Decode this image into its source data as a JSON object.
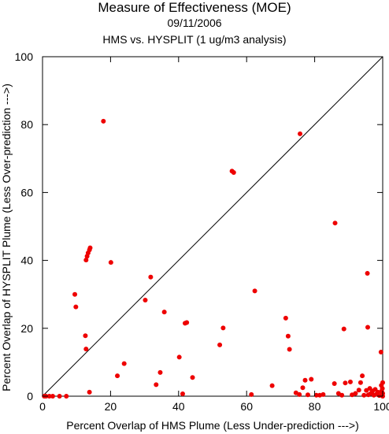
{
  "header": {
    "title": "Measure of Effectiveness (MOE)",
    "date": "09/11/2006",
    "subtitle": "HMS vs. HYSPLIT  (1 ug/m3 analysis)"
  },
  "chart_data": {
    "type": "scatter",
    "xlabel": "Percent Overlap of HMS Plume (Less Under-prediction --->)",
    "ylabel": "Percent Overlap of HYSPLIT Plume (Less Over-prediction --->)",
    "xlim": [
      0,
      100
    ],
    "ylim": [
      0,
      100
    ],
    "xticks": [
      0,
      20,
      40,
      60,
      80,
      100
    ],
    "yticks": [
      0,
      20,
      40,
      60,
      80,
      100
    ],
    "x_tick_labels": [
      "0",
      "20",
      "40",
      "60",
      "80",
      "100"
    ],
    "y_tick_labels": [
      "0",
      "20",
      "40",
      "60",
      "80",
      "100"
    ],
    "grid": false,
    "reference_line": "y = x diagonal",
    "marker_color": "#ee0000",
    "series": [
      {
        "points": [
          [
            0.5,
            0
          ],
          [
            1,
            0
          ],
          [
            2,
            0
          ],
          [
            3,
            0
          ],
          [
            5,
            0
          ],
          [
            7,
            0
          ],
          [
            9.5,
            30
          ],
          [
            9.8,
            26.3
          ],
          [
            12.6,
            17.8
          ],
          [
            12.8,
            13.9
          ],
          [
            12.8,
            40.1
          ],
          [
            13.1,
            41.2
          ],
          [
            13.4,
            42.2
          ],
          [
            13.8,
            43.1
          ],
          [
            14,
            43.7
          ],
          [
            13.8,
            1.2
          ],
          [
            17.9,
            81
          ],
          [
            20.1,
            39.4
          ],
          [
            22,
            6
          ],
          [
            24,
            9.6
          ],
          [
            30.2,
            28.3
          ],
          [
            31.8,
            35.1
          ],
          [
            33.4,
            3.4
          ],
          [
            34.6,
            7
          ],
          [
            35.8,
            24.8
          ],
          [
            40.2,
            11.5
          ],
          [
            41.2,
            0.7
          ],
          [
            41.9,
            21.5
          ],
          [
            42.4,
            21.7
          ],
          [
            44.1,
            5.5
          ],
          [
            52.1,
            15.1
          ],
          [
            53.1,
            20.1
          ],
          [
            55.7,
            66.3
          ],
          [
            56.2,
            65.9
          ],
          [
            61.4,
            0.5
          ],
          [
            62.4,
            31
          ],
          [
            67.5,
            3.1
          ],
          [
            71.5,
            23
          ],
          [
            72.2,
            17.7
          ],
          [
            72.6,
            13.8
          ],
          [
            75.7,
            77.3
          ],
          [
            74.5,
            1
          ],
          [
            75.5,
            0.5
          ],
          [
            76.5,
            2.5
          ],
          [
            77.2,
            4.7
          ],
          [
            78,
            0.4
          ],
          [
            79,
            5
          ],
          [
            80.5,
            0.3
          ],
          [
            81.5,
            0.3
          ],
          [
            82.5,
            0.5
          ],
          [
            85.8,
            3.7
          ],
          [
            86,
            51
          ],
          [
            87,
            0.8
          ],
          [
            88,
            0.3
          ],
          [
            88.6,
            19.8
          ],
          [
            89,
            3.9
          ],
          [
            90.5,
            4.2
          ],
          [
            91,
            0.4
          ],
          [
            92,
            0.8
          ],
          [
            93,
            1.8
          ],
          [
            93.5,
            4
          ],
          [
            94,
            6
          ],
          [
            94.5,
            0.3
          ],
          [
            95.2,
            1.7
          ],
          [
            95.5,
            36.2
          ],
          [
            95.6,
            20.3
          ],
          [
            95.8,
            0.4
          ],
          [
            96.2,
            2.3
          ],
          [
            96.5,
            0.8
          ],
          [
            97,
            1.5
          ],
          [
            97.4,
            0.3
          ],
          [
            97.8,
            2
          ],
          [
            98.2,
            0.6
          ],
          [
            98.6,
            1.2
          ],
          [
            99,
            0.2
          ],
          [
            99.5,
            13
          ],
          [
            99.6,
            3.2
          ],
          [
            99.7,
            1.5
          ],
          [
            99.8,
            0.4
          ],
          [
            99.9,
            2.3
          ],
          [
            100,
            4
          ],
          [
            100,
            0.8
          ],
          [
            100,
            0
          ]
        ]
      }
    ]
  }
}
